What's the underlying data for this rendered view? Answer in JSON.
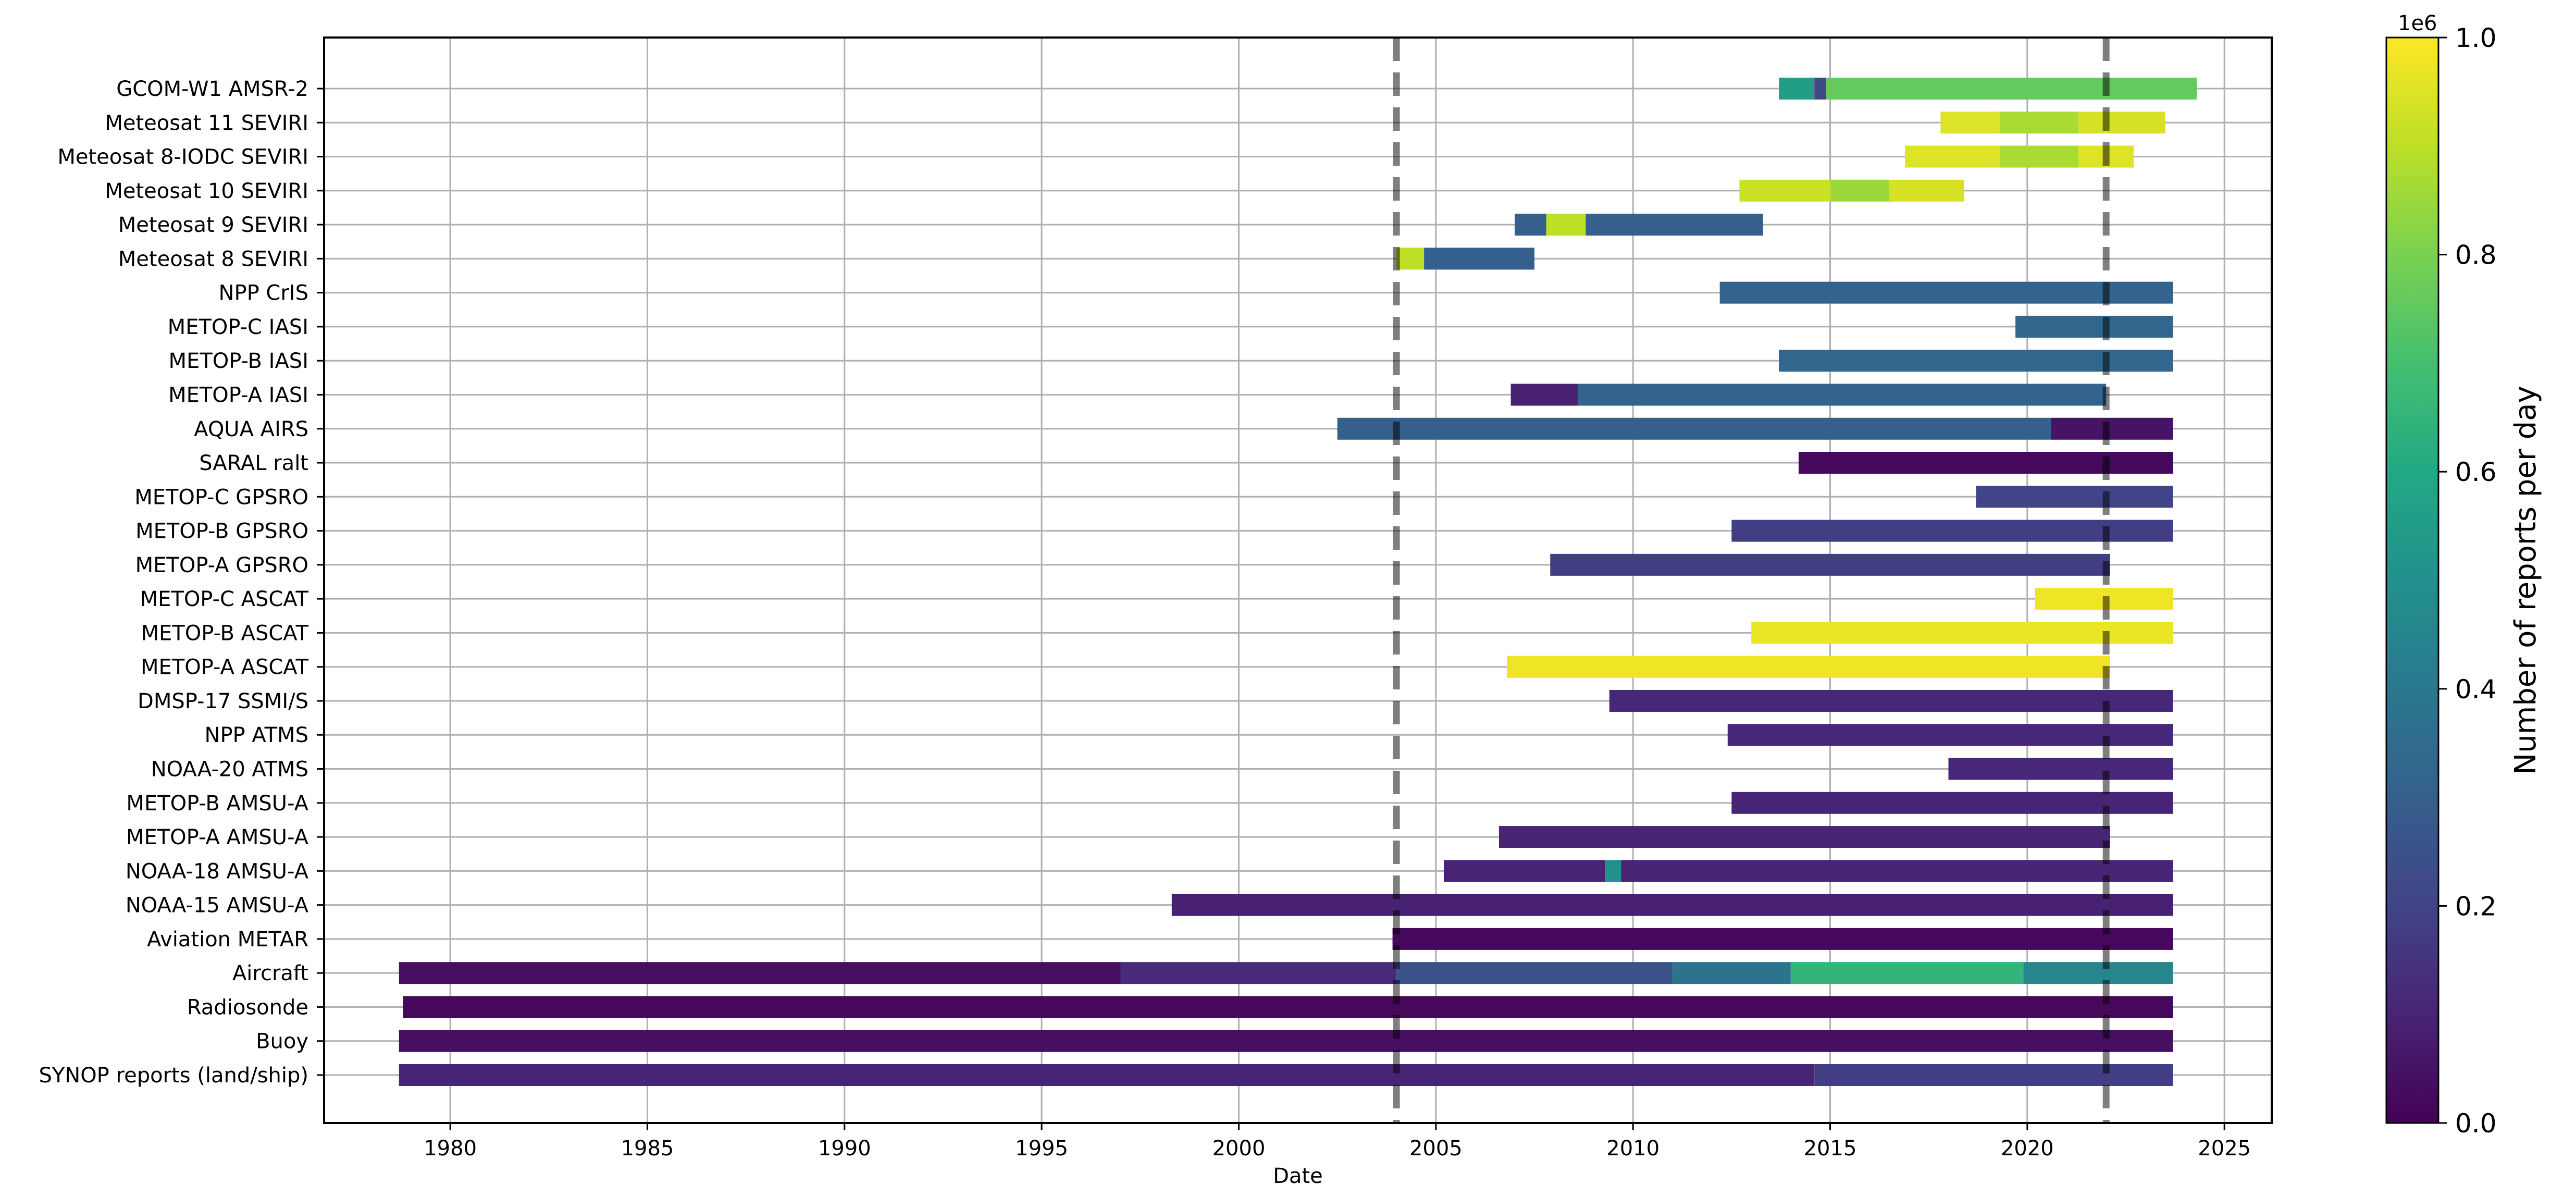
{
  "chart_data": {
    "type": "timeline",
    "xlabel": "Date",
    "xlim": [
      1976.8,
      2026.2
    ],
    "xticks": [
      1980,
      1985,
      1990,
      1995,
      2000,
      2005,
      2010,
      2015,
      2020,
      2025
    ],
    "grid": true,
    "vlines": [
      2004.0,
      2022.0
    ],
    "colorbar": {
      "label": "Number of reports per day",
      "multiplier": "1e6",
      "range": [
        0.0,
        1.0
      ],
      "ticks": [
        "0.0",
        "0.2",
        "0.4",
        "0.6",
        "0.8",
        "1.0"
      ],
      "colormap": "viridis"
    },
    "series": [
      {
        "name": "GCOM-W1 AMSR-2",
        "segments": [
          [
            2013.7,
            2014.6,
            0.55
          ],
          [
            2014.6,
            2014.9,
            0.22
          ],
          [
            2014.9,
            2024.3,
            0.76
          ]
        ]
      },
      {
        "name": "Meteosat 11 SEVIRI",
        "segments": [
          [
            2017.8,
            2019.3,
            0.95
          ],
          [
            2019.3,
            2021.3,
            0.87
          ],
          [
            2021.3,
            2023.5,
            0.94
          ]
        ]
      },
      {
        "name": "Meteosat 8-IODC SEVIRI",
        "segments": [
          [
            2016.9,
            2019.3,
            0.95
          ],
          [
            2019.3,
            2021.3,
            0.87
          ],
          [
            2021.3,
            2022.7,
            0.95
          ]
        ]
      },
      {
        "name": "Meteosat 10 SEVIRI",
        "segments": [
          [
            2012.7,
            2015.0,
            0.92
          ],
          [
            2015.0,
            2016.5,
            0.85
          ],
          [
            2016.5,
            2018.4,
            0.94
          ]
        ]
      },
      {
        "name": "Meteosat 9 SEVIRI",
        "segments": [
          [
            2007.0,
            2007.8,
            0.3
          ],
          [
            2007.8,
            2008.8,
            0.9
          ],
          [
            2008.8,
            2013.3,
            0.3
          ]
        ]
      },
      {
        "name": "Meteosat 8 SEVIRI",
        "segments": [
          [
            2004.0,
            2004.7,
            0.9
          ],
          [
            2004.7,
            2007.5,
            0.3
          ]
        ]
      },
      {
        "name": "NPP CrIS",
        "segments": [
          [
            2012.2,
            2023.7,
            0.32
          ]
        ]
      },
      {
        "name": "METOP-C IASI",
        "segments": [
          [
            2019.7,
            2023.7,
            0.33
          ]
        ]
      },
      {
        "name": "METOP-B IASI",
        "segments": [
          [
            2013.7,
            2023.7,
            0.33
          ]
        ]
      },
      {
        "name": "METOP-A IASI",
        "segments": [
          [
            2006.9,
            2008.6,
            0.09
          ],
          [
            2008.6,
            2022.0,
            0.32
          ]
        ]
      },
      {
        "name": "AQUA AIRS",
        "segments": [
          [
            2002.5,
            2020.6,
            0.3
          ],
          [
            2020.6,
            2023.7,
            0.05
          ]
        ]
      },
      {
        "name": "SARAL ralt",
        "segments": [
          [
            2014.2,
            2023.7,
            0.02
          ]
        ]
      },
      {
        "name": "METOP-C GPSRO",
        "segments": [
          [
            2018.7,
            2023.7,
            0.2
          ]
        ]
      },
      {
        "name": "METOP-B GPSRO",
        "segments": [
          [
            2012.5,
            2023.7,
            0.18
          ]
        ]
      },
      {
        "name": "METOP-A GPSRO",
        "segments": [
          [
            2007.9,
            2022.1,
            0.18
          ]
        ]
      },
      {
        "name": "METOP-C ASCAT",
        "segments": [
          [
            2020.2,
            2023.7,
            0.98
          ]
        ]
      },
      {
        "name": "METOP-B ASCAT",
        "segments": [
          [
            2013.0,
            2023.7,
            0.97
          ]
        ]
      },
      {
        "name": "METOP-A ASCAT",
        "segments": [
          [
            2006.8,
            2022.1,
            0.98
          ]
        ]
      },
      {
        "name": "DMSP-17 SSMI/S",
        "segments": [
          [
            2009.4,
            2023.7,
            0.11
          ]
        ]
      },
      {
        "name": "NPP ATMS",
        "segments": [
          [
            2012.4,
            2023.7,
            0.11
          ]
        ]
      },
      {
        "name": "NOAA-20 ATMS",
        "segments": [
          [
            2018.0,
            2023.7,
            0.11
          ]
        ]
      },
      {
        "name": "METOP-B AMSU-A",
        "segments": [
          [
            2012.5,
            2023.7,
            0.1
          ]
        ]
      },
      {
        "name": "METOP-A AMSU-A",
        "segments": [
          [
            2006.6,
            2022.1,
            0.1
          ]
        ]
      },
      {
        "name": "NOAA-18 AMSU-A",
        "segments": [
          [
            2005.2,
            2009.3,
            0.1
          ],
          [
            2009.3,
            2009.7,
            0.5
          ],
          [
            2009.7,
            2023.7,
            0.1
          ]
        ]
      },
      {
        "name": "NOAA-15 AMSU-A",
        "segments": [
          [
            1998.3,
            2023.7,
            0.09
          ]
        ]
      },
      {
        "name": "Aviation METAR",
        "segments": [
          [
            2003.9,
            2023.7,
            0.02
          ]
        ]
      },
      {
        "name": "Aircraft",
        "segments": [
          [
            1978.7,
            1997.0,
            0.04
          ],
          [
            1997.0,
            2004.0,
            0.12
          ],
          [
            2004.0,
            2011.0,
            0.25
          ],
          [
            2011.0,
            2014.0,
            0.38
          ],
          [
            2014.0,
            2019.9,
            0.65
          ],
          [
            2019.9,
            2023.7,
            0.45
          ]
        ]
      },
      {
        "name": "Radiosonde",
        "segments": [
          [
            1978.8,
            2023.7,
            0.02
          ]
        ]
      },
      {
        "name": "Buoy",
        "segments": [
          [
            1978.7,
            2023.7,
            0.04
          ]
        ]
      },
      {
        "name": "SYNOP reports (land/ship)",
        "segments": [
          [
            1978.7,
            2014.6,
            0.1
          ],
          [
            2014.6,
            2023.7,
            0.18
          ]
        ]
      }
    ]
  }
}
